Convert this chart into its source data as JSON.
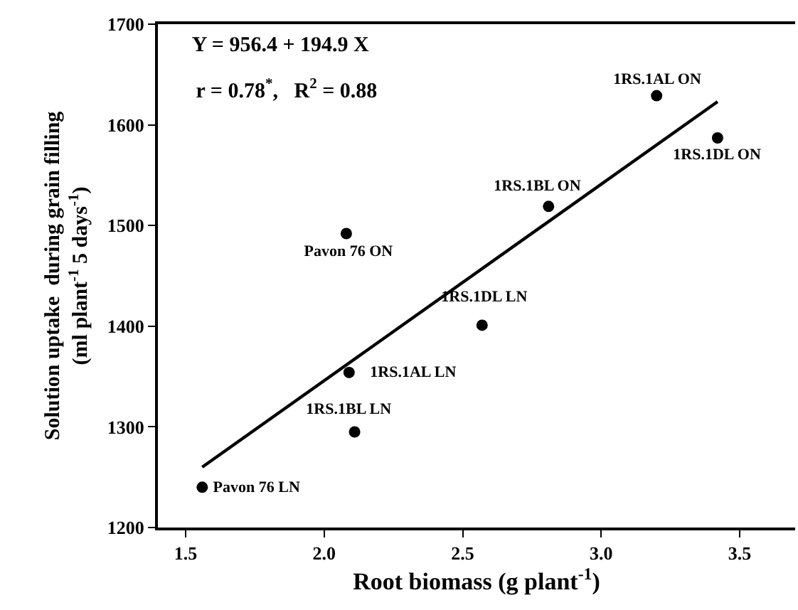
{
  "chart_data": {
    "type": "scatter",
    "xlabel": "Root biomass (g plant$^{-1}$)",
    "ylabel": "Solution uptake  during grain filling\n(ml plant$^{-1}$ 5 days$^{-1}$)",
    "x": [
      1.56,
      2.09,
      2.11,
      2.57,
      2.08,
      2.81,
      3.2,
      3.42
    ],
    "series": [
      {
        "color": "#000000",
        "values": [
          1240,
          1354,
          1295,
          1401,
          1492,
          1519,
          1629,
          1587
        ]
      },
      {
        "type": "line",
        "color": "#000000",
        "x": [
          1.56,
          3.42
        ],
        "values": [
          1260,
          1623
        ],
        "marker": "none",
        "line_style": "solid"
      }
    ],
    "marker": "circle",
    "xlim": [
      1.4,
      3.7
    ],
    "ylim": [
      1200,
      1700
    ],
    "xticks": [
      {
        "value": 1.5,
        "label": "1.5"
      },
      {
        "value": 2,
        "label": "2.0"
      },
      {
        "value": 2.5,
        "label": "2.5"
      },
      {
        "value": 3,
        "label": "3.0"
      },
      {
        "value": 3.5,
        "label": "3.5"
      }
    ],
    "yticks": [
      1200,
      1300,
      1400,
      1500,
      1600,
      1700
    ],
    "grid": false,
    "legend": false,
    "annotations": [
      {
        "text": "Pavon 76 LN",
        "x": 1.56,
        "y": 1240
      },
      {
        "text": "1RS.1AL LN",
        "x": 2.09,
        "y": 1354
      },
      {
        "text": "1RS.1BL LN",
        "x": 2.11,
        "y": 1295
      },
      {
        "text": "1RS.1DL LN",
        "x": 2.57,
        "y": 1401
      },
      {
        "text": "Pavon 76 ON",
        "x": 2.08,
        "y": 1492
      },
      {
        "text": "1RS.1BL ON",
        "x": 2.81,
        "y": 1519
      },
      {
        "text": "1RS.1AL ON",
        "x": 3.2,
        "y": 1629
      },
      {
        "text": "1RS.1DL ON",
        "x": 3.42,
        "y": 1587
      },
      "Y = 956.4 + 194.9 X",
      "r = 0.78$^{*}$,   R$^{2}$ = 0.88"
    ]
  }
}
